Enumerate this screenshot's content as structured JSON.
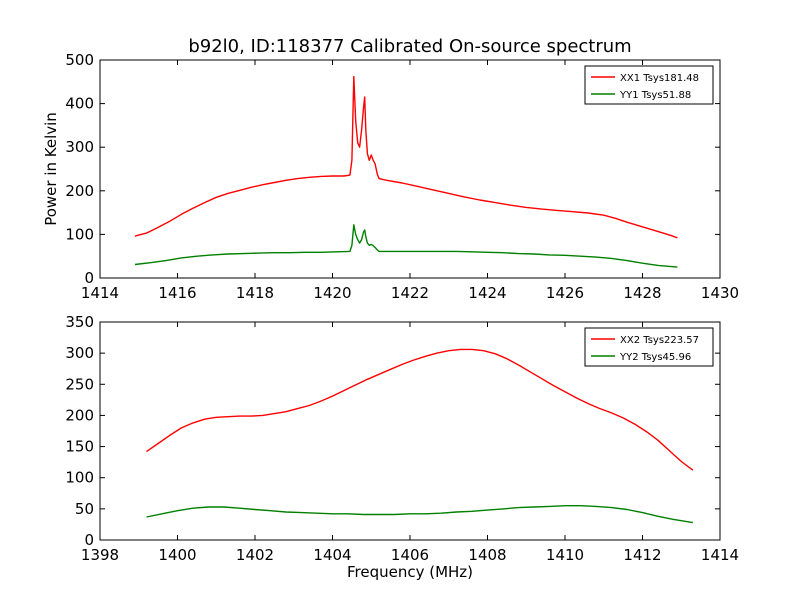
{
  "figure_title": "b92l0, ID:118377 Calibrated On-source spectrum",
  "chart_data": [
    {
      "type": "line",
      "title": "b92l0, ID:118377 Calibrated On-source spectrum",
      "xlabel": "",
      "ylabel": "Power in Kelvin",
      "xlim": [
        1414,
        1430
      ],
      "ylim": [
        0,
        500
      ],
      "xticks": [
        "1414",
        "1416",
        "1418",
        "1420",
        "1422",
        "1424",
        "1426",
        "1428",
        "1430"
      ],
      "yticks": [
        "0",
        "100",
        "200",
        "300",
        "400",
        "500"
      ],
      "grid": false,
      "legend_position": "top-right",
      "series": [
        {
          "name": "XX1 Tsys181.48",
          "color": "#ff0000",
          "points": [
            [
              1414.9,
              96
            ],
            [
              1415.2,
              103
            ],
            [
              1415.5,
              116
            ],
            [
              1415.8,
              130
            ],
            [
              1416.1,
              146
            ],
            [
              1416.4,
              160
            ],
            [
              1416.7,
              173
            ],
            [
              1417.0,
              185
            ],
            [
              1417.3,
              194
            ],
            [
              1417.6,
              201
            ],
            [
              1417.9,
              208
            ],
            [
              1418.2,
              214
            ],
            [
              1418.5,
              219
            ],
            [
              1418.8,
              224
            ],
            [
              1419.1,
              228
            ],
            [
              1419.4,
              231
            ],
            [
              1419.7,
              233
            ],
            [
              1420.0,
              234
            ],
            [
              1420.3,
              234
            ],
            [
              1420.45,
              236
            ],
            [
              1420.5,
              270
            ],
            [
              1420.55,
              462
            ],
            [
              1420.6,
              360
            ],
            [
              1420.65,
              310
            ],
            [
              1420.7,
              300
            ],
            [
              1420.75,
              340
            ],
            [
              1420.8,
              390
            ],
            [
              1420.83,
              415
            ],
            [
              1420.86,
              340
            ],
            [
              1420.9,
              285
            ],
            [
              1420.95,
              270
            ],
            [
              1421.0,
              282
            ],
            [
              1421.05,
              270
            ],
            [
              1421.1,
              262
            ],
            [
              1421.15,
              240
            ],
            [
              1421.2,
              228
            ],
            [
              1421.4,
              224
            ],
            [
              1421.8,
              218
            ],
            [
              1422.2,
              210
            ],
            [
              1422.6,
              202
            ],
            [
              1423.0,
              194
            ],
            [
              1423.4,
              186
            ],
            [
              1423.8,
              179
            ],
            [
              1424.2,
              173
            ],
            [
              1424.6,
              167
            ],
            [
              1425.0,
              162
            ],
            [
              1425.4,
              158
            ],
            [
              1425.8,
              155
            ],
            [
              1426.2,
              152
            ],
            [
              1426.6,
              149
            ],
            [
              1427.0,
              144
            ],
            [
              1427.3,
              137
            ],
            [
              1427.6,
              128
            ],
            [
              1427.9,
              120
            ],
            [
              1428.2,
              112
            ],
            [
              1428.5,
              104
            ],
            [
              1428.75,
              97
            ],
            [
              1428.9,
              92
            ]
          ]
        },
        {
          "name": "YY1 Tsys51.88",
          "color": "#008000",
          "points": [
            [
              1414.9,
              31
            ],
            [
              1415.3,
              35
            ],
            [
              1415.7,
              40
            ],
            [
              1416.1,
              46
            ],
            [
              1416.5,
              50
            ],
            [
              1416.9,
              53
            ],
            [
              1417.3,
              55
            ],
            [
              1417.7,
              56
            ],
            [
              1418.1,
              57
            ],
            [
              1418.5,
              58
            ],
            [
              1418.9,
              58
            ],
            [
              1419.3,
              59
            ],
            [
              1419.7,
              59
            ],
            [
              1420.1,
              60
            ],
            [
              1420.45,
              61
            ],
            [
              1420.5,
              75
            ],
            [
              1420.55,
              122
            ],
            [
              1420.6,
              100
            ],
            [
              1420.65,
              88
            ],
            [
              1420.7,
              80
            ],
            [
              1420.75,
              88
            ],
            [
              1420.8,
              105
            ],
            [
              1420.83,
              110
            ],
            [
              1420.86,
              95
            ],
            [
              1420.9,
              80
            ],
            [
              1420.95,
              75
            ],
            [
              1421.0,
              77
            ],
            [
              1421.05,
              74
            ],
            [
              1421.1,
              70
            ],
            [
              1421.15,
              65
            ],
            [
              1421.2,
              61
            ],
            [
              1421.6,
              61
            ],
            [
              1422.0,
              61
            ],
            [
              1422.4,
              61
            ],
            [
              1422.8,
              61
            ],
            [
              1423.2,
              61
            ],
            [
              1423.6,
              60
            ],
            [
              1424.0,
              59
            ],
            [
              1424.4,
              58
            ],
            [
              1424.8,
              56
            ],
            [
              1425.2,
              55
            ],
            [
              1425.6,
              53
            ],
            [
              1426.0,
              52
            ],
            [
              1426.4,
              50
            ],
            [
              1426.8,
              48
            ],
            [
              1427.2,
              45
            ],
            [
              1427.6,
              40
            ],
            [
              1428.0,
              34
            ],
            [
              1428.4,
              29
            ],
            [
              1428.9,
              25
            ]
          ]
        }
      ]
    },
    {
      "type": "line",
      "title": "",
      "xlabel": "Frequency (MHz)",
      "ylabel": "",
      "xlim": [
        1398,
        1414
      ],
      "ylim": [
        0,
        350
      ],
      "xticks": [
        "1398",
        "1400",
        "1402",
        "1404",
        "1406",
        "1408",
        "1410",
        "1412",
        "1414"
      ],
      "yticks": [
        "0",
        "50",
        "100",
        "150",
        "200",
        "250",
        "300",
        "350"
      ],
      "grid": false,
      "legend_position": "top-right",
      "series": [
        {
          "name": "XX2 Tsys223.57",
          "color": "#ff0000",
          "points": [
            [
              1399.2,
              142
            ],
            [
              1399.5,
              155
            ],
            [
              1399.8,
              168
            ],
            [
              1400.1,
              180
            ],
            [
              1400.4,
              188
            ],
            [
              1400.7,
              194
            ],
            [
              1401.0,
              197
            ],
            [
              1401.3,
              198
            ],
            [
              1401.6,
              199
            ],
            [
              1401.9,
              199
            ],
            [
              1402.2,
              200
            ],
            [
              1402.5,
              203
            ],
            [
              1402.8,
              206
            ],
            [
              1403.1,
              211
            ],
            [
              1403.4,
              216
            ],
            [
              1403.7,
              223
            ],
            [
              1404.0,
              231
            ],
            [
              1404.3,
              240
            ],
            [
              1404.6,
              249
            ],
            [
              1404.9,
              258
            ],
            [
              1405.2,
              266
            ],
            [
              1405.5,
              274
            ],
            [
              1405.8,
              282
            ],
            [
              1406.1,
              289
            ],
            [
              1406.4,
              295
            ],
            [
              1406.7,
              300
            ],
            [
              1407.0,
              304
            ],
            [
              1407.3,
              306
            ],
            [
              1407.6,
              306
            ],
            [
              1407.9,
              304
            ],
            [
              1408.2,
              299
            ],
            [
              1408.5,
              291
            ],
            [
              1408.8,
              281
            ],
            [
              1409.1,
              270
            ],
            [
              1409.4,
              259
            ],
            [
              1409.7,
              248
            ],
            [
              1410.0,
              238
            ],
            [
              1410.3,
              228
            ],
            [
              1410.6,
              219
            ],
            [
              1410.9,
              211
            ],
            [
              1411.2,
              204
            ],
            [
              1411.5,
              196
            ],
            [
              1411.8,
              186
            ],
            [
              1412.1,
              174
            ],
            [
              1412.4,
              160
            ],
            [
              1412.7,
              143
            ],
            [
              1413.0,
              126
            ],
            [
              1413.3,
              112
            ]
          ]
        },
        {
          "name": "YY2 Tsys45.96",
          "color": "#008000",
          "points": [
            [
              1399.2,
              37
            ],
            [
              1399.6,
              42
            ],
            [
              1400.0,
              47
            ],
            [
              1400.4,
              51
            ],
            [
              1400.8,
              53
            ],
            [
              1401.2,
              53
            ],
            [
              1401.6,
              51
            ],
            [
              1402.0,
              49
            ],
            [
              1402.4,
              47
            ],
            [
              1402.8,
              45
            ],
            [
              1403.2,
              44
            ],
            [
              1403.6,
              43
            ],
            [
              1404.0,
              42
            ],
            [
              1404.4,
              42
            ],
            [
              1404.8,
              41
            ],
            [
              1405.2,
              41
            ],
            [
              1405.6,
              41
            ],
            [
              1406.0,
              42
            ],
            [
              1406.4,
              42
            ],
            [
              1406.8,
              43
            ],
            [
              1407.2,
              45
            ],
            [
              1407.6,
              46
            ],
            [
              1408.0,
              48
            ],
            [
              1408.4,
              50
            ],
            [
              1408.8,
              52
            ],
            [
              1409.2,
              53
            ],
            [
              1409.6,
              54
            ],
            [
              1410.0,
              55
            ],
            [
              1410.4,
              55
            ],
            [
              1410.8,
              54
            ],
            [
              1411.2,
              52
            ],
            [
              1411.6,
              49
            ],
            [
              1412.0,
              44
            ],
            [
              1412.4,
              38
            ],
            [
              1412.8,
              33
            ],
            [
              1413.3,
              28
            ]
          ]
        }
      ]
    }
  ]
}
